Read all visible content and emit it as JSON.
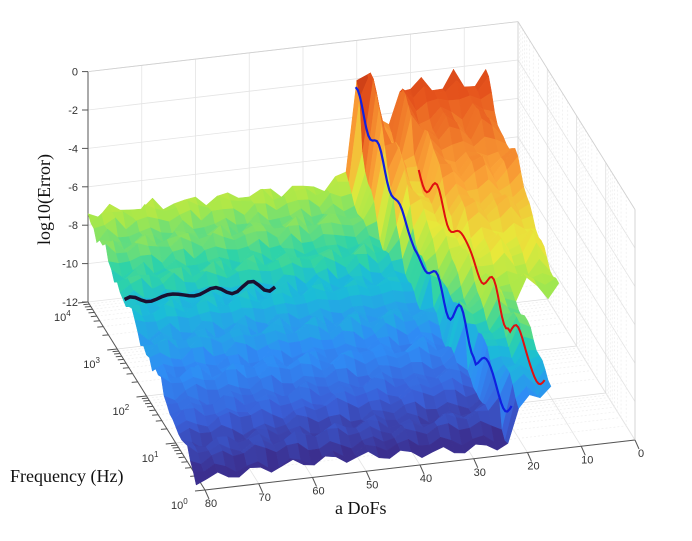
{
  "chart_data": {
    "type": "surface",
    "title": "",
    "xlabel": "a DoFs",
    "ylabel": "Frequency (Hz)",
    "zlabel": "log10(Error)",
    "x_ticks": [
      "80",
      "70",
      "60",
      "50",
      "40",
      "30",
      "20",
      "10",
      "0"
    ],
    "x_tick_values": [
      80,
      70,
      60,
      50,
      40,
      30,
      20,
      10,
      0
    ],
    "y_scale": "log",
    "y_ticks": [
      {
        "base": "10",
        "exp": "0"
      },
      {
        "base": "10",
        "exp": "1"
      },
      {
        "base": "10",
        "exp": "2"
      },
      {
        "base": "10",
        "exp": "3"
      },
      {
        "base": "10",
        "exp": "4"
      }
    ],
    "y_tick_log_values": [
      0,
      1,
      2,
      3,
      4
    ],
    "z_ticks": [
      "0",
      "-2",
      "-4",
      "-6",
      "-8",
      "-10",
      "-12"
    ],
    "z_tick_values": [
      0,
      -2,
      -4,
      -6,
      -8,
      -10,
      -12
    ],
    "xlim": [
      0,
      80
    ],
    "ylim_log10": [
      0,
      4
    ],
    "zlim": [
      -12,
      0
    ],
    "grid": true,
    "colormap": [
      "#3b2f8f",
      "#3a5fd8",
      "#2f8cf5",
      "#1bbcd8",
      "#2ed3a8",
      "#a6e84a",
      "#e8e83a",
      "#fba638",
      "#e6531c",
      "#9c1b0b"
    ],
    "surface_model": {
      "a_range": [
        6,
        80
      ],
      "log10_f_range": [
        0.3,
        4
      ],
      "base_at_log10f_0": -12,
      "slope_per_decade": 1.15
    },
    "lines": [
      {
        "name": "blue boundary",
        "color": "#1020e0",
        "a_at_low_f": 22,
        "a_at_high_f": 30.4
      },
      {
        "name": "red boundary",
        "color": "#e01010",
        "a_at_low_f": 15.6,
        "a_at_high_f": 23
      },
      {
        "name": "black line",
        "color": "#1a1030",
        "log10_f": 2.75,
        "a_range": [
          52,
          80
        ]
      }
    ]
  }
}
